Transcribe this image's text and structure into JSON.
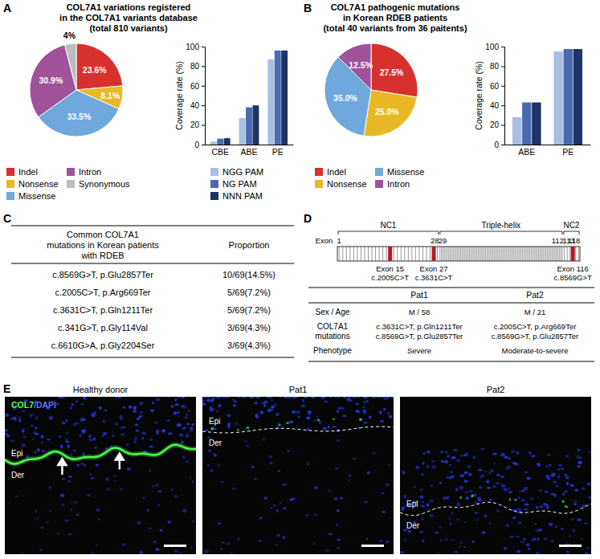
{
  "panel_labels": [
    "A",
    "B",
    "C",
    "D",
    "E"
  ],
  "chart_data": [
    {
      "type": "pie",
      "title": [
        "COL7A1 variations registered",
        "in the COL7A1 variants database",
        "(total 810 variants)"
      ],
      "categories": [
        "Indel",
        "Nonsense",
        "Missense",
        "Intron",
        "Synonymous"
      ],
      "values": [
        23.6,
        8.1,
        33.5,
        30.9,
        4
      ],
      "value_labels": [
        "23.6%",
        "8.1%",
        "33.5%",
        "30.9%",
        "4%"
      ],
      "colors": [
        "#d7312e",
        "#e9b826",
        "#6fa8dc",
        "#a0529b",
        "#bdbdbd"
      ],
      "data_labels": true,
      "legend": "bottom"
    },
    {
      "type": "bar",
      "categories": [
        "CBE",
        "ABE",
        "PE"
      ],
      "series": [
        {
          "name": "NGG PAM",
          "color": "#a8bfe2",
          "values": [
            3,
            27,
            87
          ]
        },
        {
          "name": "NG PAM",
          "color": "#4a6bb0",
          "values": [
            6,
            38,
            96
          ]
        },
        {
          "name": "NNN PAM",
          "color": "#1d3567",
          "values": [
            6.5,
            40,
            96
          ]
        }
      ],
      "ylabel": "Coverage rate (%)",
      "ylim": [
        0,
        100
      ],
      "yticks": [
        0,
        20,
        40,
        60,
        80,
        100
      ],
      "legend": "bottom"
    },
    {
      "type": "pie",
      "title": [
        "COL7A1 pathogenic mutations",
        "in Korean RDEB patients",
        "(total 40 variants from 36 paitents)"
      ],
      "categories": [
        "Indel",
        "Nonsense",
        "Missense",
        "Intron"
      ],
      "values": [
        27.5,
        25.0,
        35.0,
        12.5
      ],
      "value_labels": [
        "27.5%",
        "25.0%",
        "35.0%",
        "12.5%"
      ],
      "colors": [
        "#d7312e",
        "#e9b826",
        "#6fa8dc",
        "#a0529b"
      ],
      "data_labels": true,
      "legend": "bottom"
    },
    {
      "type": "bar",
      "categories": [
        "ABE",
        "PE"
      ],
      "series": [
        {
          "color": "#a8bfe2",
          "values": [
            28,
            95
          ]
        },
        {
          "color": "#4a6bb0",
          "values": [
            43,
            97.5
          ]
        },
        {
          "color": "#1d3567",
          "values": [
            43,
            97.5
          ]
        }
      ],
      "ylabel": "Coverage rate (%)",
      "ylim": [
        0,
        100
      ],
      "yticks": [
        0,
        20,
        40,
        60,
        80,
        100
      ]
    }
  ],
  "table_c": {
    "header": [
      [
        "Common COL7A1",
        "mutations in Korean patients",
        "with RDEB"
      ],
      [
        "Proportion"
      ]
    ],
    "rows": [
      [
        "c.8569G>T, p.Glu2857Ter",
        "10/69(14.5%)"
      ],
      [
        "c.2005C>T, p.Arg669Ter",
        "5/69(7.2%)"
      ],
      [
        "c.3631C>T, p.Gln1211Ter",
        "5/69(7.2%)"
      ],
      [
        "c.341G>T, p.Gly114Val",
        "3/69(4.3%)"
      ],
      [
        "c.6610G>A, p.Gly2204Ser",
        "3/69(4.3%)"
      ]
    ]
  },
  "diagram_d": {
    "exon_title": "Exon",
    "exon_ticks": [
      1,
      28,
      29,
      112,
      113,
      118
    ],
    "domains": [
      {
        "label": "NC1",
        "from": 1,
        "to": 28
      },
      {
        "label": "Triple-helix",
        "from": 29,
        "to": 112
      },
      {
        "label": "NC2",
        "from": 113,
        "to": 118
      }
    ],
    "highlights": [
      {
        "exon": 15,
        "label": "Exon 15",
        "mutation": "c.2005C>T"
      },
      {
        "exon": 27,
        "label": "Exon 27",
        "mutation": "c.3631C>T"
      },
      {
        "exon": 116,
        "label": "Exon 116",
        "mutation": "c.8569G>T"
      }
    ]
  },
  "table_d": {
    "columns": [
      "Pat1",
      "Pat2"
    ],
    "rows": [
      {
        "label": [
          "Sex / Age"
        ],
        "cells": [
          [
            "M / 58"
          ],
          [
            "M / 21"
          ]
        ]
      },
      {
        "label": [
          "COL7A1",
          "mutations"
        ],
        "cells": [
          [
            "c.3631C>T, p.Gln1211Ter",
            "c.8569G>T, p.Glu2857Ter"
          ],
          [
            "c.2005C>T, p.Arg669Ter",
            "c.8569G>T, p.Glu2857Ter"
          ]
        ]
      },
      {
        "label": [
          "Phenotype"
        ],
        "cells": [
          [
            "Severe"
          ],
          [
            "Moderate-to-severe"
          ]
        ]
      }
    ]
  },
  "images_e": {
    "stain": [
      "COL7",
      "/DAPI"
    ],
    "panels": [
      {
        "title": "Healthy donor",
        "epi": "Epi",
        "der": "Der"
      },
      {
        "title": "Pat1",
        "epi": "Epi",
        "der": "Der"
      },
      {
        "title": "Pat2",
        "epi": "Epi",
        "der": "Der"
      }
    ]
  }
}
